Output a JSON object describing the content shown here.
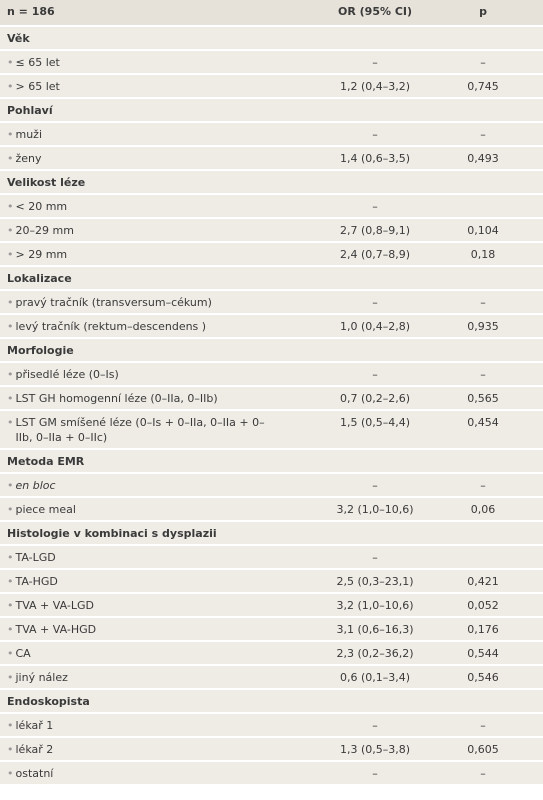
{
  "header": [
    "n = 186",
    "OR (95% CI)",
    "p"
  ],
  "groups": [
    {
      "title": "Věk",
      "rows": [
        {
          "label": "≤ 65 let",
          "or": "–",
          "p": "–"
        },
        {
          "label": "> 65 let",
          "or": "1,2 (0,4–3,2)",
          "p": "0,745"
        }
      ]
    },
    {
      "title": "Pohlaví",
      "rows": [
        {
          "label": "muži",
          "or": "–",
          "p": "–"
        },
        {
          "label": "ženy",
          "or": "1,4 (0,6–3,5)",
          "p": "0,493"
        }
      ]
    },
    {
      "title": "Velikost léze",
      "rows": [
        {
          "label": "< 20 mm",
          "or": "–"
        },
        {
          "label": "20–29 mm",
          "or": "2,7 (0,8–9,1)",
          "p": "0,104"
        },
        {
          "label": "> 29 mm",
          "or": "2,4 (0,7–8,9)",
          "p": "0,18"
        }
      ]
    },
    {
      "title": "Lokalizace",
      "rows": [
        {
          "label": "pravý tračník (transversum–cékum)",
          "or": "–",
          "p": "–"
        },
        {
          "label": "levý tračník (rektum–descendens )",
          "or": "1,0 (0,4–2,8)",
          "p": "0,935"
        }
      ]
    },
    {
      "title": "Morfologie",
      "rows": [
        {
          "label": "přisedlé léze (0–Is)",
          "or": "–",
          "p": "–"
        },
        {
          "label": "LST GH homogenní léze (0–IIa, 0–IIb)",
          "or": "0,7 (0,2–2,6)",
          "p": "0,565"
        },
        {
          "label": "LST GM smíšené léze (0–Is + 0–IIa, 0–IIa + 0–IIb, 0–IIa + 0–IIc)",
          "or": "1,5 (0,5–4,4)",
          "p": "0,454"
        }
      ]
    },
    {
      "title": "Metoda EMR",
      "rows": [
        {
          "label": "en bloc",
          "or": "–",
          "p": "–",
          "italic": true
        },
        {
          "label": "piece meal",
          "or": "3,2 (1,0–10,6)",
          "p": "0,06"
        }
      ]
    },
    {
      "title": "Histologie v kombinaci s dysplazii",
      "rows": [
        {
          "label": "TA-LGD",
          "or": "–"
        },
        {
          "label": "TA-HGD",
          "or": "2,5 (0,3–23,1)",
          "p": "0,421"
        },
        {
          "label": "TVA + VA-LGD",
          "or": "3,2 (1,0–10,6)",
          "p": "0,052"
        },
        {
          "label": "TVA + VA-HGD",
          "or": "3,1 (0,6–16,3)",
          "p": "0,176"
        },
        {
          "label": "CA",
          "or": "2,3 (0,2–36,2)",
          "p": "0,544"
        },
        {
          "label": "jiný nález",
          "or": "0,6 (0,1–3,4)",
          "p": "0,546"
        }
      ]
    },
    {
      "title": "Endoskopista",
      "rows": [
        {
          "label": "lékař 1",
          "or": "–",
          "p": "–"
        },
        {
          "label": "lékař 2",
          "or": "1,3 (0,5–3,8)",
          "p": "0,605"
        },
        {
          "label": "ostatní",
          "or": "–",
          "p": "–"
        }
      ]
    }
  ]
}
